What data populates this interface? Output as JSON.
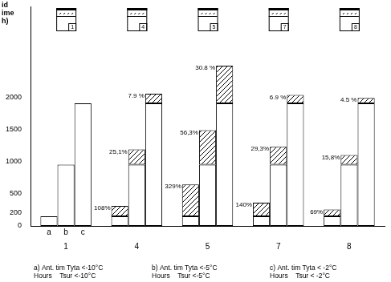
{
  "chart_data": {
    "type": "bar",
    "ylabel": [
      "id",
      "ime",
      "h)"
    ],
    "categories": [
      "1",
      "4",
      "5",
      "7",
      "8"
    ],
    "series": [
      {
        "name": "a",
        "color": "#ffffff",
        "values": [
          150,
          150,
          150,
          150,
          150
        ],
        "increase": [
          null,
          162,
          494,
          210,
          104
        ],
        "increase_labels": [
          null,
          "108%",
          "329%",
          "140%",
          "69%"
        ]
      },
      {
        "name": "b",
        "color": "#ffffff",
        "values": [
          950,
          950,
          950,
          950,
          950
        ],
        "increase": [
          null,
          238,
          535,
          278,
          150
        ],
        "increase_labels": [
          null,
          "25,1%",
          "56,3%",
          "29,3%",
          "15,8%"
        ]
      },
      {
        "name": "c",
        "color": "#ffffff",
        "values": [
          1900,
          1900,
          1900,
          1900,
          1900
        ],
        "increase": [
          null,
          150,
          585,
          131,
          86
        ],
        "increase_labels": [
          null,
          "7.9 %",
          "30.8 %",
          "6.9 %",
          "4.5 %"
        ]
      }
    ],
    "ylim": [
      0,
      3400
    ],
    "yticks": [
      0,
      200,
      500,
      1000,
      1500,
      2000
    ],
    "grid": false,
    "stacked": true,
    "captions": [
      [
        "a) Ant. tim Tyta <-10°C",
        "Hours    Tsur <-10°C"
      ],
      [
        "b) Ant. tim Tyta <-5°C",
        "Hours    Tsur <-5°C"
      ],
      [
        "c) Ant. tim Tyta < -2°C",
        "Hours    Tsur < -2°C"
      ]
    ]
  }
}
